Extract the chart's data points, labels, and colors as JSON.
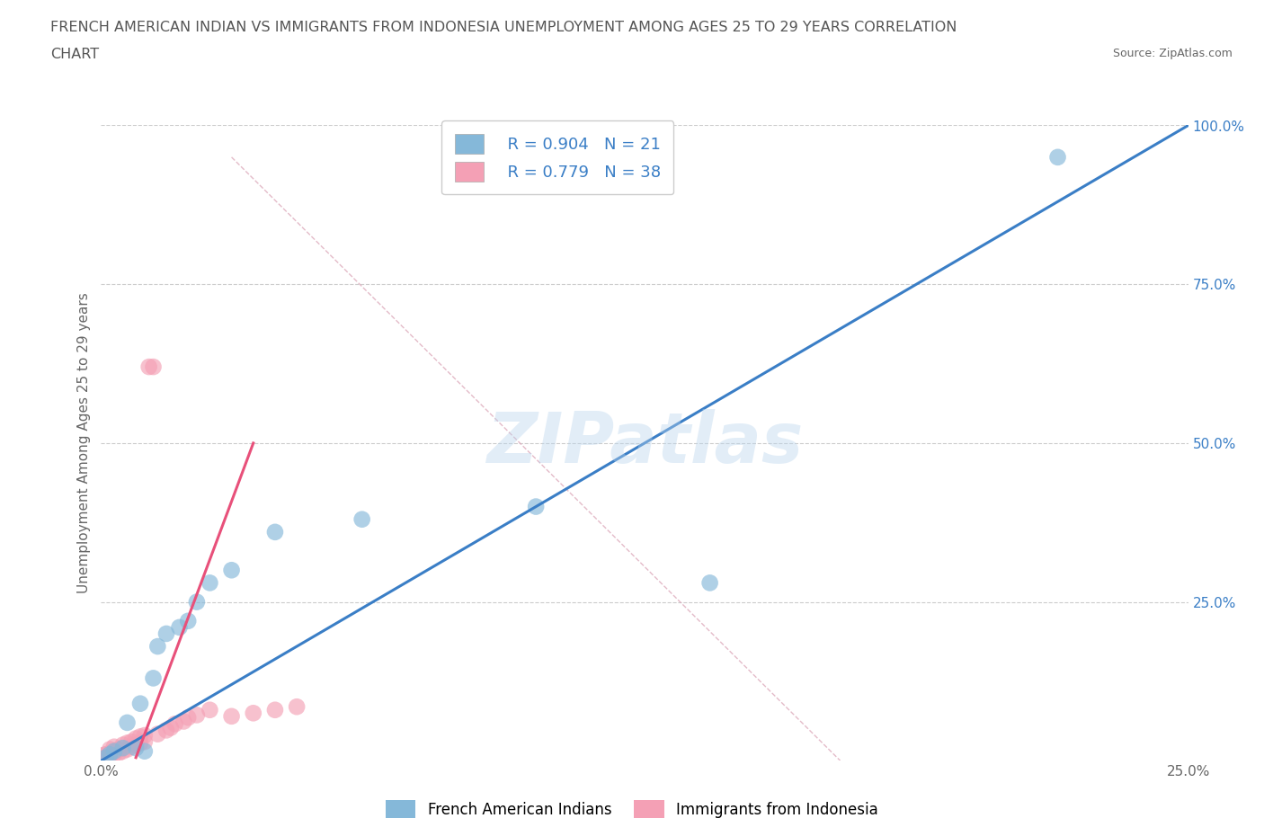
{
  "title_line1": "FRENCH AMERICAN INDIAN VS IMMIGRANTS FROM INDONESIA UNEMPLOYMENT AMONG AGES 25 TO 29 YEARS CORRELATION",
  "title_line2": "CHART",
  "source_text": "Source: ZipAtlas.com",
  "ylabel": "Unemployment Among Ages 25 to 29 years",
  "xlim": [
    0,
    0.25
  ],
  "ylim": [
    0,
    1.0
  ],
  "xticks": [
    0.0,
    0.05,
    0.1,
    0.15,
    0.2,
    0.25
  ],
  "yticks": [
    0.0,
    0.25,
    0.5,
    0.75,
    1.0
  ],
  "blue_scatter_x": [
    0.001,
    0.002,
    0.003,
    0.005,
    0.006,
    0.008,
    0.009,
    0.01,
    0.012,
    0.013,
    0.015,
    0.018,
    0.02,
    0.022,
    0.025,
    0.03,
    0.04,
    0.06,
    0.1,
    0.14,
    0.22
  ],
  "blue_scatter_y": [
    0.005,
    0.01,
    0.015,
    0.02,
    0.06,
    0.02,
    0.09,
    0.015,
    0.13,
    0.18,
    0.2,
    0.21,
    0.22,
    0.25,
    0.28,
    0.3,
    0.36,
    0.38,
    0.4,
    0.28,
    0.95
  ],
  "pink_scatter_x": [
    0.0,
    0.0,
    0.001,
    0.001,
    0.002,
    0.002,
    0.002,
    0.003,
    0.003,
    0.003,
    0.004,
    0.004,
    0.005,
    0.005,
    0.006,
    0.006,
    0.007,
    0.007,
    0.008,
    0.008,
    0.009,
    0.009,
    0.01,
    0.01,
    0.011,
    0.012,
    0.013,
    0.015,
    0.016,
    0.017,
    0.019,
    0.02,
    0.022,
    0.025,
    0.03,
    0.035,
    0.04,
    0.045
  ],
  "pink_scatter_y": [
    0.003,
    0.008,
    0.005,
    0.01,
    0.006,
    0.012,
    0.018,
    0.01,
    0.015,
    0.022,
    0.012,
    0.018,
    0.015,
    0.025,
    0.018,
    0.028,
    0.022,
    0.03,
    0.025,
    0.035,
    0.028,
    0.038,
    0.03,
    0.04,
    0.62,
    0.62,
    0.042,
    0.048,
    0.052,
    0.058,
    0.062,
    0.068,
    0.072,
    0.08,
    0.07,
    0.075,
    0.08,
    0.085
  ],
  "blue_line_x": [
    0.0,
    0.25
  ],
  "blue_line_y": [
    0.0,
    1.0
  ],
  "pink_line_x": [
    0.008,
    0.035
  ],
  "pink_line_y": [
    0.005,
    0.5
  ],
  "dash_line_x": [
    0.03,
    0.17
  ],
  "dash_line_y": [
    0.95,
    0.0
  ],
  "blue_color": "#85B8D9",
  "pink_color": "#F4A0B5",
  "blue_line_color": "#3A7EC6",
  "pink_line_color": "#E8507A",
  "dash_line_color": "#DDAABB",
  "R_blue": 0.904,
  "N_blue": 21,
  "R_pink": 0.779,
  "N_pink": 38,
  "legend_label_blue": "French American Indians",
  "legend_label_pink": "Immigrants from Indonesia",
  "watermark": "ZIPatlas",
  "background_color": "#ffffff",
  "grid_color": "#cccccc",
  "title_color": "#555555",
  "label_color": "#666666",
  "tick_color_y": "#3A7EC6"
}
